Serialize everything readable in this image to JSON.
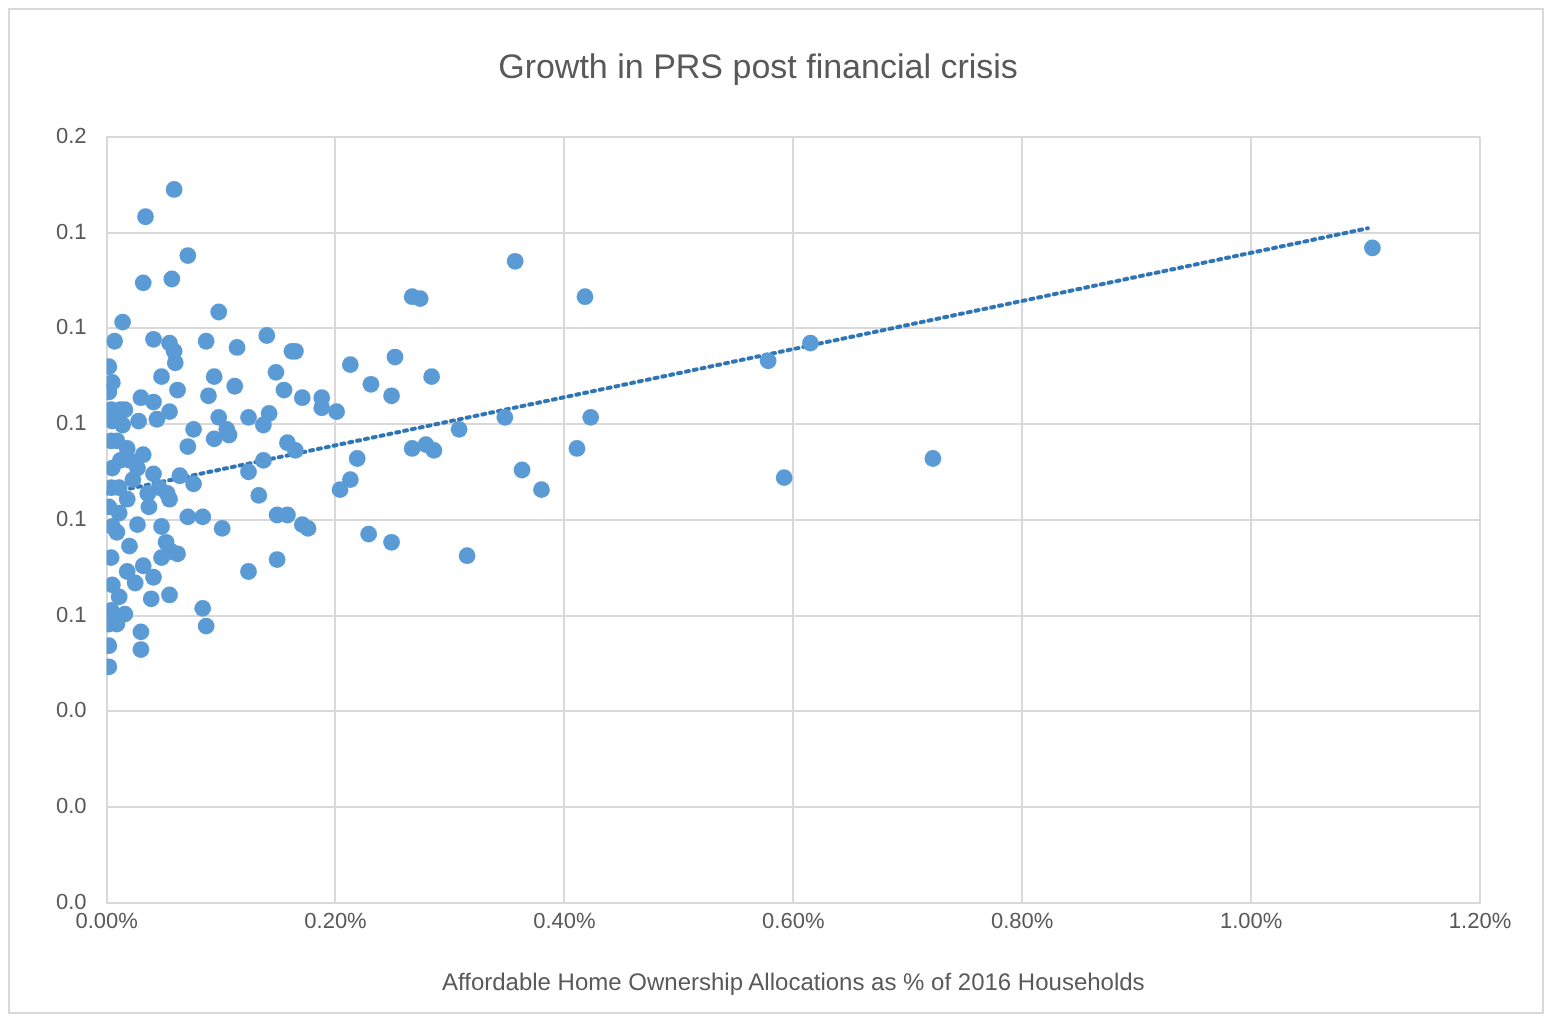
{
  "chart_data": {
    "type": "scatter",
    "title": "Growth in PRS post financial crisis",
    "xlabel": "Affordable Home Ownership Allocations as % of 2016 Households",
    "xlim": [
      0,
      1.2
    ],
    "ylim": [
      0,
      0.16
    ],
    "xticks": [
      {
        "value": 0,
        "label": "0.00%"
      },
      {
        "value": 0.2,
        "label": "0.20%"
      },
      {
        "value": 0.4,
        "label": "0.40%"
      },
      {
        "value": 0.6,
        "label": "0.60%"
      },
      {
        "value": 0.8,
        "label": "0.80%"
      },
      {
        "value": 1.0,
        "label": "1.00%"
      },
      {
        "value": 1.2,
        "label": "1.20%"
      }
    ],
    "yticks": [
      {
        "value": 0,
        "label": "0.0"
      },
      {
        "value": 0.02,
        "label": "0.0"
      },
      {
        "value": 0.04,
        "label": "0.0"
      },
      {
        "value": 0.06,
        "label": "0.1"
      },
      {
        "value": 0.08,
        "label": "0.1"
      },
      {
        "value": 0.1,
        "label": "0.1"
      },
      {
        "value": 0.12,
        "label": "0.1"
      },
      {
        "value": 0.14,
        "label": "0.1"
      },
      {
        "value": 0.16,
        "label": "0.2"
      }
    ],
    "grid": true,
    "legend": false,
    "series": [
      {
        "type": "scatter",
        "marker": "circle",
        "color": "#5b9bd5",
        "x": [
          1.106,
          0.615,
          0.578,
          0.592,
          0.722,
          0.357,
          0.418,
          0.267,
          0.274,
          0.165,
          0.213,
          0.252,
          0.231,
          0.284,
          0.249,
          0.171,
          0.188,
          0.188,
          0.201,
          0.308,
          0.348,
          0.423,
          0.411,
          0.267,
          0.279,
          0.286,
          0.219,
          0.213,
          0.204,
          0.363,
          0.38,
          0.165,
          0.171,
          0.176,
          0.229,
          0.249,
          0.315,
          0.059,
          0.034,
          0.071,
          0.032,
          0.057,
          0.014,
          0.098,
          0.007,
          0.002,
          0.041,
          0.055,
          0.059,
          0.06,
          0.087,
          0.114,
          0.14,
          0.162,
          0.148,
          0.155,
          0.094,
          0.112,
          0.089,
          0.062,
          0.048,
          0.03,
          0.041,
          0.055,
          0.076,
          0.098,
          0.107,
          0.124,
          0.137,
          0.142,
          0.071,
          0.094,
          0.105,
          0.158,
          0.137,
          0.124,
          0.133,
          0.076,
          0.064,
          0.149,
          0.158,
          0.071,
          0.084,
          0.101,
          0.027,
          0.048,
          0.052,
          0.057,
          0.062,
          0.048,
          0.055,
          0.124,
          0.149,
          0.084,
          0.087,
          0.03,
          0.03,
          0.016,
          0.039,
          0.025,
          0.002,
          0.002,
          0.002,
          0.004,
          0.005,
          0.004,
          0.005,
          0.002,
          0.004,
          0.005,
          0.004,
          0.005,
          0.004,
          0.002,
          0.005,
          0.012,
          0.014,
          0.018,
          0.02,
          0.023,
          0.018,
          0.02,
          0.018,
          0.027,
          0.032,
          0.041,
          0.046,
          0.036,
          0.053,
          0.037,
          0.055,
          0.032,
          0.041,
          0.011,
          0.009,
          0.016,
          0.028,
          0.044,
          0.009,
          0.012,
          0.011,
          0.011,
          0.009
        ],
        "values": [
          0.1368,
          0.1169,
          0.1132,
          0.0888,
          0.0928,
          0.134,
          0.1266,
          0.1266,
          0.1262,
          0.1152,
          0.1124,
          0.114,
          0.1083,
          0.1099,
          0.1059,
          0.1055,
          0.1055,
          0.1034,
          0.1026,
          0.0989,
          0.1014,
          0.1014,
          0.0949,
          0.0949,
          0.0957,
          0.0945,
          0.0928,
          0.0884,
          0.0863,
          0.0904,
          0.0863,
          0.0945,
          0.079,
          0.0782,
          0.077,
          0.0753,
          0.0725,
          0.149,
          0.1433,
          0.1352,
          0.1295,
          0.1303,
          0.1213,
          0.1234,
          0.1173,
          0.112,
          0.1177,
          0.1169,
          0.1152,
          0.1128,
          0.1173,
          0.116,
          0.1185,
          0.1152,
          0.1108,
          0.1071,
          0.1099,
          0.1079,
          0.1059,
          0.1071,
          0.1099,
          0.1055,
          0.1046,
          0.1026,
          0.0989,
          0.1014,
          0.0977,
          0.1014,
          0.0998,
          0.1022,
          0.0953,
          0.0969,
          0.0989,
          0.0961,
          0.0924,
          0.09,
          0.0851,
          0.0875,
          0.0892,
          0.081,
          0.081,
          0.0806,
          0.0806,
          0.0782,
          0.079,
          0.0786,
          0.0753,
          0.0733,
          0.0729,
          0.0721,
          0.0643,
          0.0692,
          0.0717,
          0.0615,
          0.0578,
          0.0566,
          0.0529,
          0.0603,
          0.0635,
          0.0668,
          0.0493,
          0.0537,
          0.0582,
          0.0611,
          0.0664,
          0.0721,
          0.0786,
          0.0827,
          0.0867,
          0.0908,
          0.0965,
          0.1006,
          0.103,
          0.1067,
          0.1087,
          0.103,
          0.0998,
          0.0949,
          0.0924,
          0.0884,
          0.0843,
          0.0745,
          0.0692,
          0.0908,
          0.0936,
          0.0896,
          0.0867,
          0.0855,
          0.0855,
          0.0827,
          0.0843,
          0.0704,
          0.068,
          0.0639,
          0.0582,
          0.103,
          0.1006,
          0.101,
          0.0965,
          0.0924,
          0.0867,
          0.0814,
          0.0774
        ]
      },
      {
        "type": "line",
        "marker": "none",
        "line_style": "dotted",
        "color": "#2e75b6",
        "x": [
          0,
          1.102
        ],
        "values": [
          0.0855,
          0.1409
        ]
      }
    ]
  }
}
